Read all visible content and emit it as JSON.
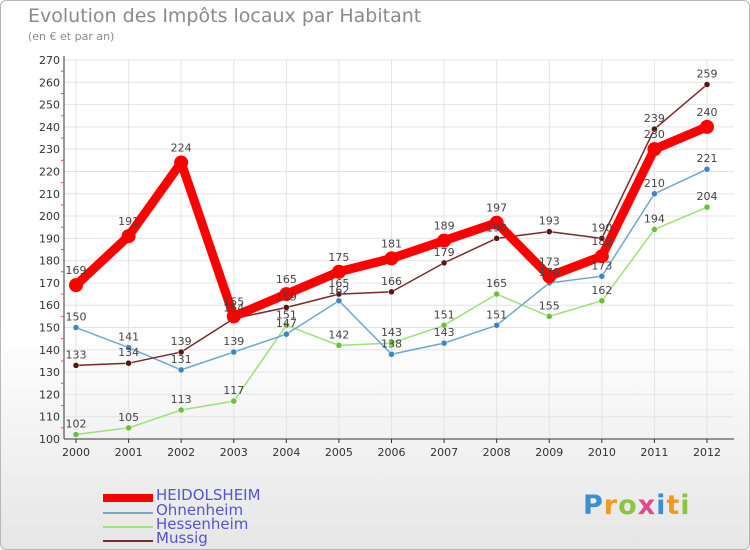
{
  "title": "Evolution des Impôts locaux par Habitant",
  "subtitle": "(en € et par an)",
  "logo": {
    "text": "Proxiti",
    "letter_colors": [
      "#3d8fd4",
      "#f09a1e",
      "#8cc63f",
      "#e14a8a",
      "#3d8fd4",
      "#f09a1e",
      "#8cc63f"
    ]
  },
  "chart_data": {
    "type": "line",
    "title": "Evolution des Impôts locaux par Habitant",
    "subtitle": "(en € et par an)",
    "xlabel": "",
    "ylabel": "",
    "ylim": [
      100,
      270
    ],
    "y_ticks": [
      100,
      110,
      120,
      130,
      140,
      150,
      160,
      170,
      180,
      190,
      200,
      210,
      220,
      230,
      240,
      250,
      260,
      270
    ],
    "x": [
      "2000",
      "2001",
      "2002",
      "2003",
      "2004",
      "2005",
      "2006",
      "2007",
      "2008",
      "2009",
      "2010",
      "2011",
      "2012"
    ],
    "grid": true,
    "legend_position": "bottom-left",
    "series": [
      {
        "name": "HEIDOLSHEIM",
        "color": "#ff0000",
        "marker_color": "#ff0000",
        "bold": true,
        "values": [
          169,
          191,
          224,
          155,
          165,
          175,
          181,
          189,
          197,
          173,
          182,
          230,
          240
        ],
        "labels": [
          "169",
          "191",
          "224",
          "155",
          "165",
          "175",
          "181",
          "189",
          "197",
          "173",
          "182",
          "230",
          "240"
        ]
      },
      {
        "name": "Ohnenheim",
        "color": "#6fa6cf",
        "marker_color": "#3d85c6",
        "bold": false,
        "values": [
          150,
          141,
          131,
          139,
          147,
          162,
          138,
          143,
          151,
          170,
          173,
          210,
          221
        ],
        "labels": [
          "150",
          "141",
          "131",
          "139",
          "147",
          "162",
          "138",
          "143",
          "151",
          "170",
          "173",
          "210",
          "221"
        ]
      },
      {
        "name": "Hessenheim",
        "color": "#9ee07a",
        "marker_color": "#6dbf3a",
        "bold": false,
        "values": [
          102,
          105,
          113,
          117,
          151,
          142,
          143,
          151,
          165,
          155,
          162,
          194,
          204
        ],
        "labels": [
          "102",
          "105",
          "113",
          "117",
          "151",
          "142",
          "143",
          "151",
          "165",
          "155",
          "162",
          "194",
          "204"
        ]
      },
      {
        "name": "Mussig",
        "color": "#7a2a2a",
        "marker_color": "#5c1313",
        "bold": false,
        "values": [
          133,
          134,
          139,
          154,
          159,
          165,
          166,
          179,
          190,
          193,
          190,
          239,
          259
        ],
        "labels": [
          "133",
          "134",
          "139",
          "154",
          "159",
          "165",
          "166",
          "179",
          "190",
          "193",
          "190",
          "239",
          "259"
        ]
      }
    ]
  }
}
